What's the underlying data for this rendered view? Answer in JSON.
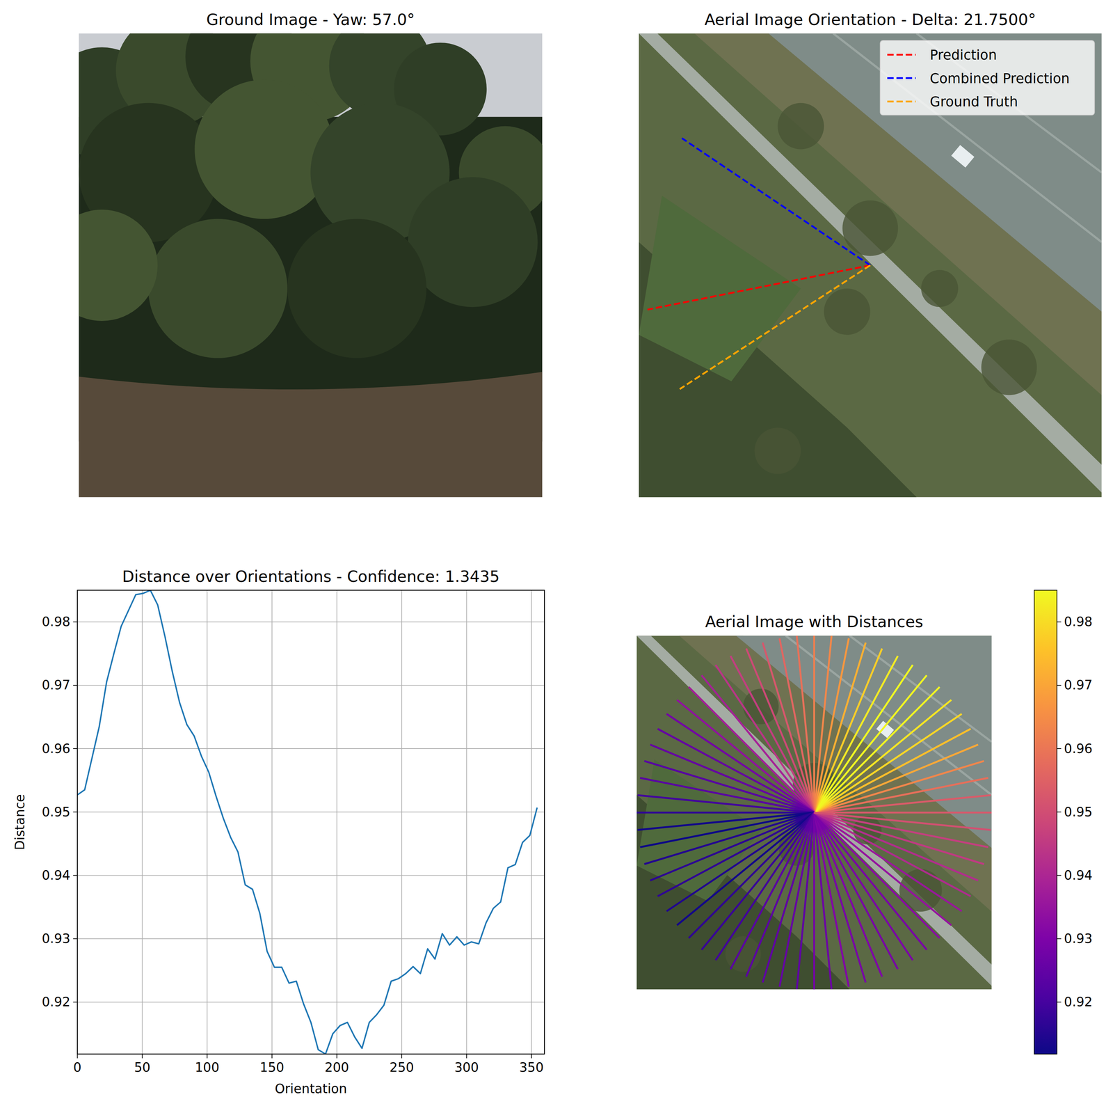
{
  "chart_data": [
    {
      "type": "image",
      "title": "Ground Image - Yaw: 57.0°"
    },
    {
      "type": "direction",
      "title": "Aerial Image Orientation - Delta: 21.7500°",
      "legend": "upper right",
      "series": [
        {
          "name": "Prediction",
          "color": "red",
          "line_style": "dashed",
          "values": [
            191.25
          ]
        },
        {
          "name": "Combined Prediction",
          "color": "blue",
          "line_style": "dashed",
          "values": [
            146
          ]
        },
        {
          "name": "Ground Truth",
          "color": "orange",
          "line_style": "dashed",
          "values": [
            213
          ]
        }
      ]
    },
    {
      "type": "line",
      "title": "Distance over Orientations - Confidence: 1.3435",
      "x_label": "Orientation",
      "y_label": "Distance",
      "color": "#1f77b4",
      "grid": true,
      "xlim": [
        0,
        360
      ],
      "ylim": [
        0.9118,
        0.985
      ],
      "xticks": [
        0,
        50,
        100,
        150,
        200,
        250,
        300,
        350
      ],
      "yticks": [
        0.92,
        0.93,
        0.94,
        0.95,
        0.96,
        0.97,
        0.98
      ],
      "x": [
        0,
        5.625,
        11.25,
        16.875,
        22.5,
        28.125,
        33.75,
        39.375,
        45,
        50.625,
        56.25,
        61.875,
        67.5,
        73.125,
        78.75,
        84.375,
        90,
        95.625,
        101.25,
        106.875,
        112.5,
        118.125,
        123.75,
        129.375,
        135,
        140.625,
        146.25,
        151.875,
        157.5,
        163.125,
        168.75,
        174.375,
        180,
        185.625,
        191.25,
        196.875,
        202.5,
        208.125,
        213.75,
        219.375,
        225,
        230.625,
        236.25,
        241.875,
        247.5,
        253.125,
        258.75,
        264.375,
        270,
        275.625,
        281.25,
        286.875,
        292.5,
        298.125,
        303.75,
        309.375,
        315,
        320.625,
        326.25,
        331.875,
        337.5,
        343.125,
        348.75,
        354.375
      ],
      "values": [
        0.9527,
        0.9535,
        0.9585,
        0.9635,
        0.9705,
        0.975,
        0.9793,
        0.9818,
        0.9843,
        0.9845,
        0.985,
        0.9827,
        0.9777,
        0.9722,
        0.9673,
        0.9638,
        0.962,
        0.9588,
        0.9563,
        0.9525,
        0.949,
        0.946,
        0.9437,
        0.9385,
        0.9378,
        0.934,
        0.928,
        0.9255,
        0.9255,
        0.923,
        0.9233,
        0.9197,
        0.9168,
        0.9125,
        0.9118,
        0.915,
        0.9163,
        0.9168,
        0.9145,
        0.9127,
        0.9168,
        0.918,
        0.9195,
        0.9233,
        0.9237,
        0.9245,
        0.9256,
        0.9245,
        0.9284,
        0.9268,
        0.9308,
        0.929,
        0.9303,
        0.929,
        0.9295,
        0.9292,
        0.9325,
        0.9348,
        0.9358,
        0.9412,
        0.9417,
        0.9452,
        0.9463,
        0.9507
      ]
    },
    {
      "type": "radial",
      "title": "Aerial Image with Distances",
      "x": [
        0,
        5.625,
        11.25,
        16.875,
        22.5,
        28.125,
        33.75,
        39.375,
        45,
        50.625,
        56.25,
        61.875,
        67.5,
        73.125,
        78.75,
        84.375,
        90,
        95.625,
        101.25,
        106.875,
        112.5,
        118.125,
        123.75,
        129.375,
        135,
        140.625,
        146.25,
        151.875,
        157.5,
        163.125,
        168.75,
        174.375,
        180,
        185.625,
        191.25,
        196.875,
        202.5,
        208.125,
        213.75,
        219.375,
        225,
        230.625,
        236.25,
        241.875,
        247.5,
        253.125,
        258.75,
        264.375,
        270,
        275.625,
        281.25,
        286.875,
        292.5,
        298.125,
        303.75,
        309.375,
        315,
        320.625,
        326.25,
        331.875,
        337.5,
        343.125,
        348.75,
        354.375
      ],
      "values": [
        0.9527,
        0.9535,
        0.9585,
        0.9635,
        0.9705,
        0.975,
        0.9793,
        0.9818,
        0.9843,
        0.9845,
        0.985,
        0.9827,
        0.9777,
        0.9722,
        0.9673,
        0.9638,
        0.962,
        0.9588,
        0.9563,
        0.9525,
        0.949,
        0.946,
        0.9437,
        0.9385,
        0.9378,
        0.934,
        0.928,
        0.9255,
        0.9255,
        0.923,
        0.9233,
        0.9197,
        0.9168,
        0.9125,
        0.9118,
        0.915,
        0.9163,
        0.9168,
        0.9145,
        0.9127,
        0.9168,
        0.918,
        0.9195,
        0.9233,
        0.9237,
        0.9245,
        0.9256,
        0.9245,
        0.9284,
        0.9268,
        0.9308,
        0.929,
        0.9303,
        0.929,
        0.9295,
        0.9292,
        0.9325,
        0.9348,
        0.9358,
        0.9412,
        0.9417,
        0.9452,
        0.9463,
        0.9507
      ],
      "colorbar": {
        "range": [
          0.9118,
          0.985
        ],
        "ticks": [
          0.92,
          0.93,
          0.94,
          0.95,
          0.96,
          0.97,
          0.98
        ]
      }
    }
  ]
}
